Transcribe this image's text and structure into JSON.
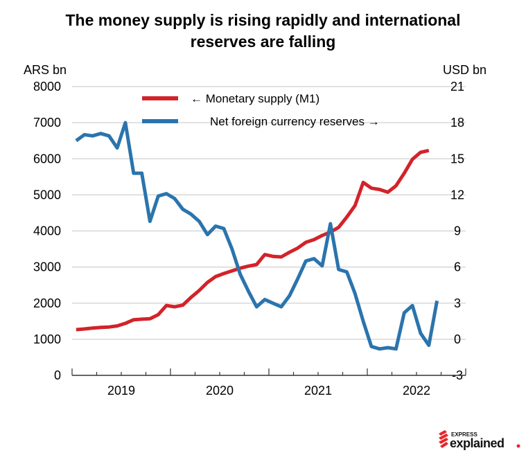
{
  "chart_data": {
    "type": "line",
    "title": "The money supply is rising rapidly and international reserves are falling",
    "title_lines": [
      "The money supply is rising rapidly and international",
      "reserves are falling"
    ],
    "y_left_label": "ARS bn",
    "y_right_label": "USD bn",
    "y_left_lim": [
      0,
      8000
    ],
    "y_left_ticks": [
      "0",
      "1000",
      "2000",
      "3000",
      "4000",
      "5000",
      "6000",
      "7000",
      "8000"
    ],
    "y_right_lim": [
      -3,
      21
    ],
    "y_right_ticks": [
      "-3",
      "0",
      "3",
      "6",
      "9",
      "12",
      "15",
      "18",
      "21"
    ],
    "x_range": [
      "2019-01",
      "2022-12"
    ],
    "x_tick_labels": [
      "2019",
      "2020",
      "2021",
      "2022"
    ],
    "grid": "horizontal",
    "legend_placement": "top",
    "series": [
      {
        "name": "← Monetary supply (M1)",
        "axis": "left",
        "color": "#d2232a",
        "start": "2019-01",
        "frequency": "monthly",
        "values": [
          1267,
          1285,
          1310,
          1330,
          1340,
          1370,
          1440,
          1540,
          1555,
          1570,
          1680,
          1935,
          1900,
          1945,
          2160,
          2350,
          2575,
          2735,
          2820,
          2895,
          2970,
          3025,
          3070,
          3345,
          3295,
          3280,
          3410,
          3525,
          3685,
          3760,
          3875,
          3970,
          4100,
          4385,
          4705,
          5345,
          5185,
          5150,
          5075,
          5250,
          5600,
          5985,
          6180,
          6230
        ]
      },
      {
        "name": "Net foreign currency reserves →",
        "axis": "right",
        "color": "#2b74ad",
        "start": "2019-01",
        "frequency": "monthly",
        "values": [
          16.5,
          17.0,
          16.9,
          17.1,
          16.9,
          15.9,
          18.0,
          13.8,
          13.8,
          9.8,
          11.9,
          12.1,
          11.7,
          10.8,
          10.4,
          9.8,
          8.7,
          9.4,
          9.2,
          7.5,
          5.4,
          4.0,
          2.7,
          3.3,
          3.0,
          2.7,
          3.6,
          5.0,
          6.5,
          6.7,
          6.1,
          9.6,
          5.8,
          5.6,
          3.8,
          1.5,
          -0.6,
          -0.8,
          -0.7,
          -0.8,
          2.2,
          2.8,
          0.5,
          -0.5,
          3.2
        ]
      }
    ]
  },
  "logo": {
    "text_top": "EXPRESS",
    "text_main": "explained."
  }
}
